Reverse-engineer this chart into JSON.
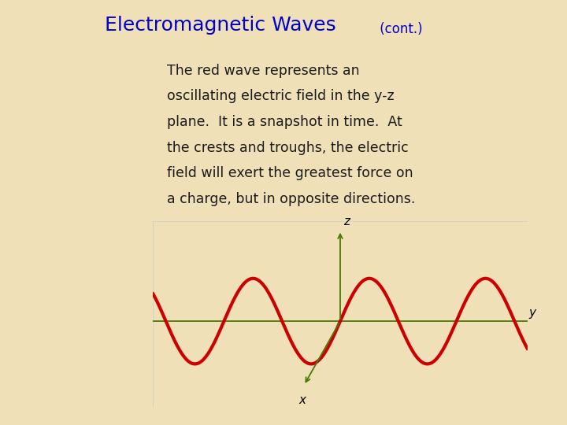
{
  "background_color": "#f0e0b8",
  "title_main": "Electromagnetic Waves",
  "title_cont": " (cont.)",
  "title_color": "#0000cc",
  "title_main_fontsize": 18,
  "title_cont_fontsize": 12,
  "body_text_lines": [
    "The red wave represents an",
    "oscillating electric field in the y-z",
    "plane.  It is a snapshot in time.  At",
    "the crests and troughs, the electric",
    "field will exert the greatest force on",
    "a charge, but in opposite directions."
  ],
  "body_text_color": "#1a1a1a",
  "body_fontsize": 12.5,
  "wave_color": "#cc0000",
  "axis_color": "#4a7a00",
  "diagram_bg": "#ffffff",
  "wave_amplitude": 0.32,
  "wave_freq": 1.4,
  "wave_linewidth": 3.0,
  "axis_linewidth": 1.3,
  "label_x": "x",
  "label_y": "y",
  "label_z": "z",
  "label_fontsize": 11
}
